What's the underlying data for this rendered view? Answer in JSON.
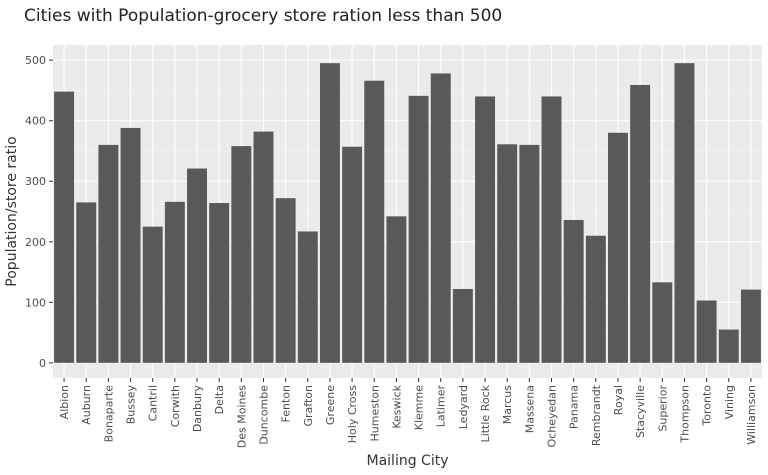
{
  "chart_data": {
    "type": "bar",
    "title": "Cities with Population-grocery store ration less than 500",
    "xlabel": "Mailing City",
    "ylabel": "Population/store ratio",
    "ylim": [
      -25,
      525
    ],
    "yticks": [
      0,
      100,
      200,
      300,
      400,
      500
    ],
    "grid": true,
    "categories": [
      "Albion",
      "Auburn",
      "Bonaparte",
      "Bussey",
      "Cantril",
      "Corwith",
      "Danbury",
      "Delta",
      "Des Moines",
      "Duncombe",
      "Fenton",
      "Grafton",
      "Greene",
      "Holy Cross",
      "Humeston",
      "Keswick",
      "Klemme",
      "Latimer",
      "Ledyard",
      "Little Rock",
      "Marcus",
      "Massena",
      "Ocheyedan",
      "Panama",
      "Rembrandt",
      "Royal",
      "Stacyville",
      "Superior",
      "Thompson",
      "Toronto",
      "Vining",
      "Williamson"
    ],
    "values": [
      448,
      265,
      360,
      388,
      225,
      266,
      321,
      264,
      358,
      382,
      272,
      217,
      495,
      357,
      466,
      242,
      441,
      478,
      122,
      440,
      361,
      360,
      440,
      236,
      210,
      380,
      459,
      133,
      495,
      103,
      55,
      121
    ],
    "colors": {
      "bar": "#595959",
      "panel": "#ebebeb",
      "grid_major": "#ffffff",
      "grid_minor": "#f5f5f5"
    }
  }
}
